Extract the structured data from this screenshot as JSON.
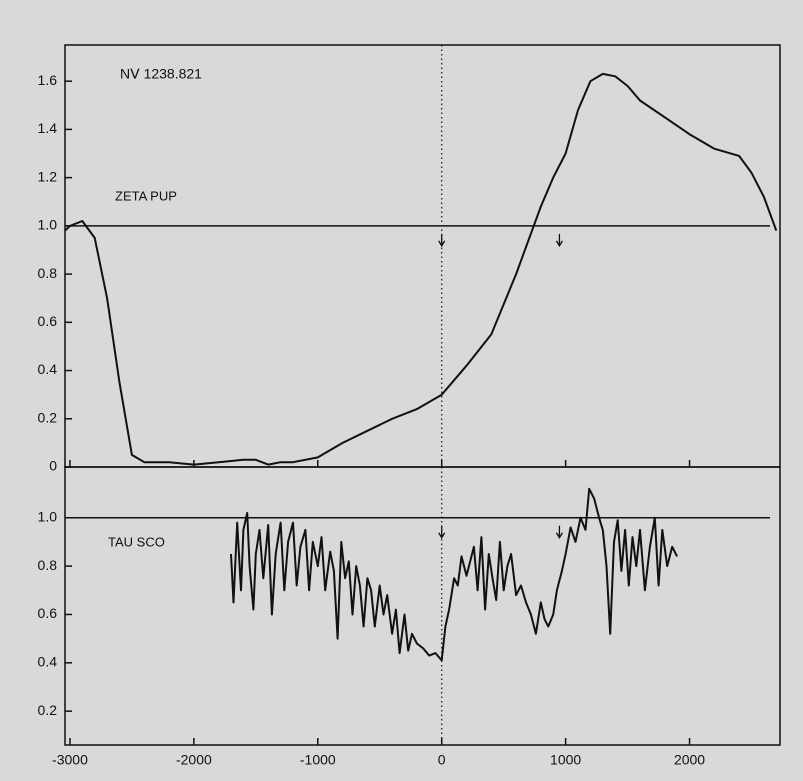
{
  "chart_data": [
    {
      "type": "line",
      "title": "NⅤ 1238.821",
      "label": "ZETA PUP",
      "x": [
        -3040,
        -3000,
        -2900,
        -2800,
        -2700,
        -2600,
        -2500,
        -2400,
        -2200,
        -2000,
        -1800,
        -1600,
        -1500,
        -1400,
        -1300,
        -1200,
        -1000,
        -800,
        -600,
        -400,
        -200,
        0,
        200,
        400,
        600,
        800,
        900,
        1000,
        1100,
        1200,
        1300,
        1400,
        1500,
        1600,
        1800,
        2000,
        2200,
        2400,
        2500,
        2600,
        2700
      ],
      "series": [
        {
          "color": "#111111",
          "values": [
            0.98,
            1.0,
            1.02,
            0.95,
            0.7,
            0.35,
            0.05,
            0.02,
            0.02,
            0.01,
            0.02,
            0.03,
            0.03,
            0.01,
            0.02,
            0.02,
            0.04,
            0.1,
            0.15,
            0.2,
            0.24,
            0.3,
            0.42,
            0.55,
            0.8,
            1.08,
            1.2,
            1.3,
            1.48,
            1.6,
            1.63,
            1.62,
            1.58,
            1.52,
            1.45,
            1.38,
            1.32,
            1.29,
            1.22,
            1.12,
            0.98
          ]
        }
      ],
      "xlim": [
        -3040,
        2730
      ],
      "ylim": [
        0,
        1.75
      ],
      "xticks": [
        -3000,
        -2000,
        -1000,
        0,
        1000,
        2000
      ],
      "yticks": [
        0,
        {
          "value": 0.2,
          "label": "0.2"
        },
        {
          "value": 0.4,
          "label": "0.4"
        },
        {
          "value": 0.6,
          "label": "0.6"
        },
        {
          "value": 0.8,
          "label": "0.8"
        },
        {
          "value": 1,
          "label": "1.0"
        },
        {
          "value": 1.2,
          "label": "1.2"
        },
        {
          "value": 1.4,
          "label": "1.4"
        },
        {
          "value": 1.6,
          "label": "1.6"
        }
      ],
      "reference_y": 1,
      "reference_x": 0,
      "marker_x": [
        0,
        950
      ]
    },
    {
      "type": "line",
      "label": "TAU SCO",
      "x": [
        -1700,
        -1680,
        -1650,
        -1620,
        -1600,
        -1570,
        -1550,
        -1520,
        -1500,
        -1470,
        -1440,
        -1400,
        -1370,
        -1340,
        -1300,
        -1270,
        -1240,
        -1200,
        -1170,
        -1140,
        -1100,
        -1070,
        -1040,
        -1000,
        -970,
        -940,
        -900,
        -870,
        -840,
        -810,
        -780,
        -750,
        -720,
        -690,
        -660,
        -630,
        -600,
        -570,
        -540,
        -500,
        -470,
        -440,
        -400,
        -370,
        -340,
        -300,
        -270,
        -240,
        -200,
        -150,
        -100,
        -50,
        0,
        30,
        60,
        100,
        130,
        160,
        200,
        230,
        260,
        290,
        320,
        350,
        380,
        410,
        440,
        470,
        500,
        530,
        560,
        600,
        640,
        680,
        720,
        760,
        800,
        830,
        860,
        900,
        930,
        970,
        1000,
        1040,
        1080,
        1120,
        1160,
        1190,
        1230,
        1270,
        1300,
        1330,
        1360,
        1390,
        1420,
        1450,
        1480,
        1510,
        1540,
        1570,
        1600,
        1640,
        1680,
        1720,
        1750,
        1780,
        1820,
        1860,
        1900
      ],
      "series": [
        {
          "color": "#111111",
          "values": [
            0.85,
            0.65,
            0.98,
            0.7,
            0.95,
            1.02,
            0.8,
            0.62,
            0.85,
            0.95,
            0.75,
            0.97,
            0.6,
            0.85,
            0.98,
            0.7,
            0.9,
            0.98,
            0.72,
            0.88,
            0.95,
            0.7,
            0.9,
            0.8,
            0.92,
            0.7,
            0.86,
            0.78,
            0.5,
            0.9,
            0.75,
            0.82,
            0.6,
            0.8,
            0.72,
            0.55,
            0.75,
            0.7,
            0.55,
            0.72,
            0.6,
            0.68,
            0.52,
            0.62,
            0.44,
            0.6,
            0.45,
            0.52,
            0.48,
            0.46,
            0.43,
            0.44,
            0.41,
            0.55,
            0.62,
            0.75,
            0.72,
            0.84,
            0.76,
            0.82,
            0.88,
            0.7,
            0.92,
            0.62,
            0.85,
            0.75,
            0.66,
            0.9,
            0.7,
            0.8,
            0.85,
            0.68,
            0.72,
            0.65,
            0.6,
            0.52,
            0.65,
            0.58,
            0.55,
            0.6,
            0.7,
            0.78,
            0.85,
            0.96,
            0.9,
            1.0,
            0.95,
            1.12,
            1.08,
            1.0,
            0.95,
            0.8,
            0.52,
            0.9,
            0.99,
            0.78,
            0.95,
            0.72,
            0.92,
            0.8,
            0.95,
            0.7,
            0.88,
            1.0,
            0.72,
            0.95,
            0.8,
            0.88,
            0.84
          ]
        }
      ],
      "xlim": [
        -3040,
        2730
      ],
      "ylim": [
        0.06,
        1.21
      ],
      "xticks": [
        -3000,
        -2000,
        -1000,
        0,
        1000,
        2000
      ],
      "yticks": [
        {
          "value": 0.2,
          "label": "0.2"
        },
        {
          "value": 0.4,
          "label": "0.4"
        },
        {
          "value": 0.6,
          "label": "0.6"
        },
        {
          "value": 0.8,
          "label": "0.8"
        },
        {
          "value": 1,
          "label": "1.0"
        }
      ],
      "reference_y": 1,
      "reference_x": 0,
      "marker_x": [
        0,
        950
      ]
    }
  ]
}
